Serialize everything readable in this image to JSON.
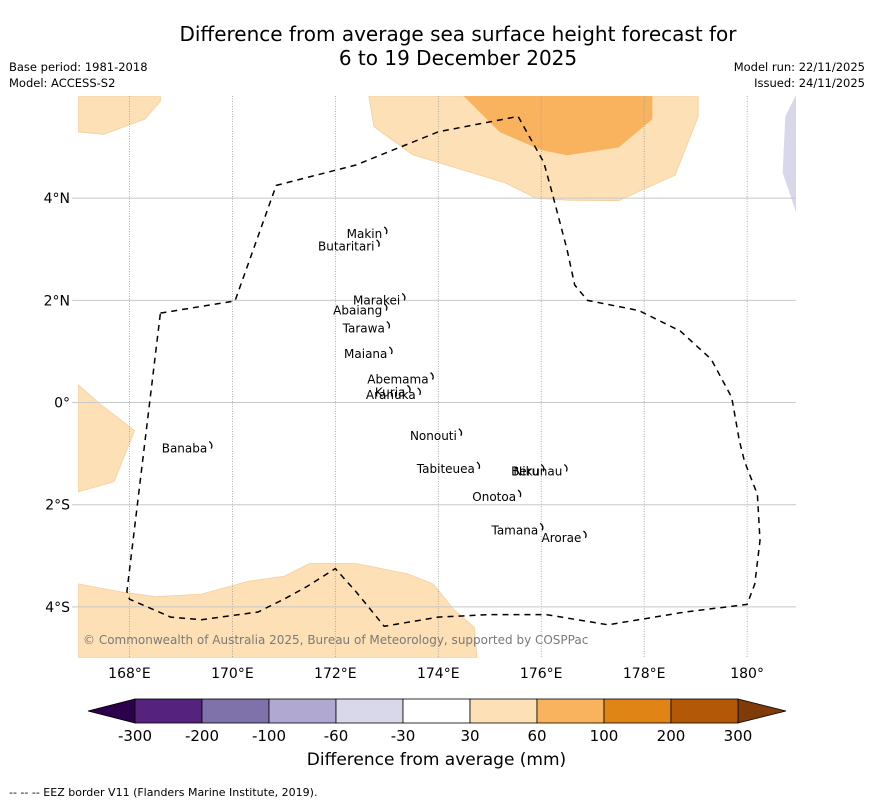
{
  "header": {
    "title_line1": "Difference from average sea surface height forecast for",
    "title_line2": "6 to 19 December 2025",
    "base_period": "Base period: 1981-2018",
    "model": "Model: ACCESS-S2",
    "model_run": "Model run: 22/11/2025",
    "issued": "Issued: 24/11/2025"
  },
  "map": {
    "lon_range": [
      167.0,
      180.95
    ],
    "lat_range": [
      -5.0,
      6.0
    ],
    "lon_ticks": [
      {
        "v": 168,
        "label": "168°E"
      },
      {
        "v": 170,
        "label": "170°E"
      },
      {
        "v": 172,
        "label": "172°E"
      },
      {
        "v": 174,
        "label": "174°E"
      },
      {
        "v": 176,
        "label": "176°E"
      },
      {
        "v": 178,
        "label": "178°E"
      },
      {
        "v": 180,
        "label": "180°"
      }
    ],
    "lat_ticks": [
      {
        "v": 4,
        "label": "4°N"
      },
      {
        "v": 2,
        "label": "2°N"
      },
      {
        "v": 0,
        "label": "0°"
      },
      {
        "v": -2,
        "label": "2°S"
      },
      {
        "v": -4,
        "label": "4°S"
      }
    ],
    "copyright": "© Commonwealth of Australia 2025, Bureau of Meteorology, supported by COSPPac",
    "islands": [
      {
        "name": "Makin",
        "lon": 172.95,
        "lat": 3.3
      },
      {
        "name": "Butaritari",
        "lon": 172.8,
        "lat": 3.05
      },
      {
        "name": "Marakei",
        "lon": 173.3,
        "lat": 2.0
      },
      {
        "name": "Abaiang",
        "lon": 172.95,
        "lat": 1.8
      },
      {
        "name": "Tarawa",
        "lon": 173.0,
        "lat": 1.45
      },
      {
        "name": "Maiana",
        "lon": 173.05,
        "lat": 0.95
      },
      {
        "name": "Abemama",
        "lon": 173.85,
        "lat": 0.45
      },
      {
        "name": "Kuria",
        "lon": 173.4,
        "lat": 0.2
      },
      {
        "name": "Aranuka",
        "lon": 173.6,
        "lat": 0.15
      },
      {
        "name": "Banaba",
        "lon": 169.55,
        "lat": -0.9
      },
      {
        "name": "Nonouti",
        "lon": 174.4,
        "lat": -0.65
      },
      {
        "name": "Tabiteuea",
        "lon": 174.75,
        "lat": -1.3
      },
      {
        "name": "Beru",
        "lon": 176.0,
        "lat": -1.35
      },
      {
        "name": "Nikunau",
        "lon": 176.45,
        "lat": -1.35
      },
      {
        "name": "Onotoa",
        "lon": 175.55,
        "lat": -1.85
      },
      {
        "name": "Tamana",
        "lon": 175.98,
        "lat": -2.5
      },
      {
        "name": "Arorae",
        "lon": 176.82,
        "lat": -2.65
      }
    ],
    "contours": [
      {
        "level": "30-60",
        "color": "#fde0b6",
        "points": [
          [
            167.0,
            5.3
          ],
          [
            167.5,
            5.25
          ],
          [
            168.3,
            5.55
          ],
          [
            168.6,
            5.9
          ],
          [
            168.6,
            6.0
          ],
          [
            167.0,
            6.0
          ]
        ]
      },
      {
        "level": "30-60",
        "color": "#fde0b6",
        "points": [
          [
            172.65,
            6.0
          ],
          [
            172.75,
            5.4
          ],
          [
            173.5,
            4.85
          ],
          [
            175.3,
            4.3
          ],
          [
            175.9,
            4.0
          ],
          [
            176.5,
            3.96
          ],
          [
            177.5,
            3.95
          ],
          [
            178.6,
            4.45
          ],
          [
            179.05,
            5.6
          ],
          [
            179.05,
            6.0
          ]
        ]
      },
      {
        "level": "60-100",
        "color": "#f9b35f",
        "points": [
          [
            174.5,
            6.0
          ],
          [
            175.2,
            5.3
          ],
          [
            176.0,
            4.95
          ],
          [
            176.5,
            4.85
          ],
          [
            177.5,
            5.0
          ],
          [
            178.15,
            5.55
          ],
          [
            178.15,
            6.0
          ]
        ]
      },
      {
        "level": "-60--30",
        "color": "#d8d8ea",
        "points": [
          [
            180.95,
            6.0
          ],
          [
            180.75,
            5.6
          ],
          [
            180.7,
            4.5
          ],
          [
            180.95,
            3.75
          ]
        ]
      },
      {
        "level": "30-60",
        "color": "#fde0b6",
        "points": [
          [
            167.0,
            0.35
          ],
          [
            167.45,
            -0.05
          ],
          [
            168.1,
            -0.55
          ],
          [
            167.7,
            -1.55
          ],
          [
            167.0,
            -1.75
          ]
        ]
      },
      {
        "level": "30-60",
        "color": "#fde0b6",
        "points": [
          [
            167.0,
            -3.55
          ],
          [
            167.8,
            -3.7
          ],
          [
            168.5,
            -3.8
          ],
          [
            169.4,
            -3.75
          ],
          [
            170.3,
            -3.5
          ],
          [
            171.0,
            -3.4
          ],
          [
            171.5,
            -3.15
          ],
          [
            172.1,
            -3.15
          ],
          [
            172.4,
            -3.15
          ],
          [
            173.4,
            -3.35
          ],
          [
            173.9,
            -3.55
          ],
          [
            174.3,
            -4.05
          ],
          [
            174.7,
            -4.4
          ],
          [
            174.75,
            -5.0
          ],
          [
            167.0,
            -5.0
          ]
        ]
      }
    ],
    "eez_border": [
      [
        168.6,
        1.75
      ],
      [
        170.05,
        1.99
      ],
      [
        170.85,
        4.25
      ],
      [
        172.4,
        4.65
      ],
      [
        174.0,
        5.3
      ],
      [
        175.55,
        5.6
      ],
      [
        176.05,
        4.7
      ],
      [
        176.2,
        4.15
      ],
      [
        176.5,
        3.0
      ],
      [
        176.65,
        2.3
      ],
      [
        176.9,
        2.0
      ],
      [
        177.9,
        1.8
      ],
      [
        178.7,
        1.4
      ],
      [
        179.3,
        0.85
      ],
      [
        179.7,
        0.1
      ],
      [
        179.85,
        -0.75
      ],
      [
        179.95,
        -1.15
      ],
      [
        180.2,
        -1.8
      ],
      [
        180.25,
        -2.7
      ],
      [
        180.15,
        -3.55
      ],
      [
        180.0,
        -3.95
      ],
      [
        178.8,
        -4.1
      ],
      [
        177.3,
        -4.35
      ],
      [
        176.1,
        -4.15
      ],
      [
        175.0,
        -4.15
      ],
      [
        174.0,
        -4.2
      ],
      [
        172.95,
        -4.38
      ],
      [
        172.4,
        -3.7
      ],
      [
        172.0,
        -3.25
      ],
      [
        171.45,
        -3.6
      ],
      [
        171.0,
        -3.85
      ],
      [
        170.5,
        -4.1
      ],
      [
        169.4,
        -4.25
      ],
      [
        168.8,
        -4.2
      ],
      [
        168.0,
        -3.85
      ],
      [
        167.95,
        -3.7
      ],
      [
        168.6,
        1.75
      ]
    ]
  },
  "colorbar": {
    "label": "Difference from average (mm)",
    "tick_labels": [
      "-300",
      "-200",
      "-100",
      "-60",
      "-30",
      "30",
      "60",
      "100",
      "200",
      "300"
    ],
    "colors": [
      "#55227d",
      "#7f72ab",
      "#b1a8d1",
      "#d8d8ea",
      "#ffffff",
      "#fde0b6",
      "#f9b35f",
      "#e08416",
      "#b35806"
    ],
    "under_color": "#2d004b",
    "over_color": "#7f3b08"
  },
  "footer": {
    "legend_text": "--  --  -- EEZ border V11 (Flanders Marine Institute, 2019)."
  }
}
